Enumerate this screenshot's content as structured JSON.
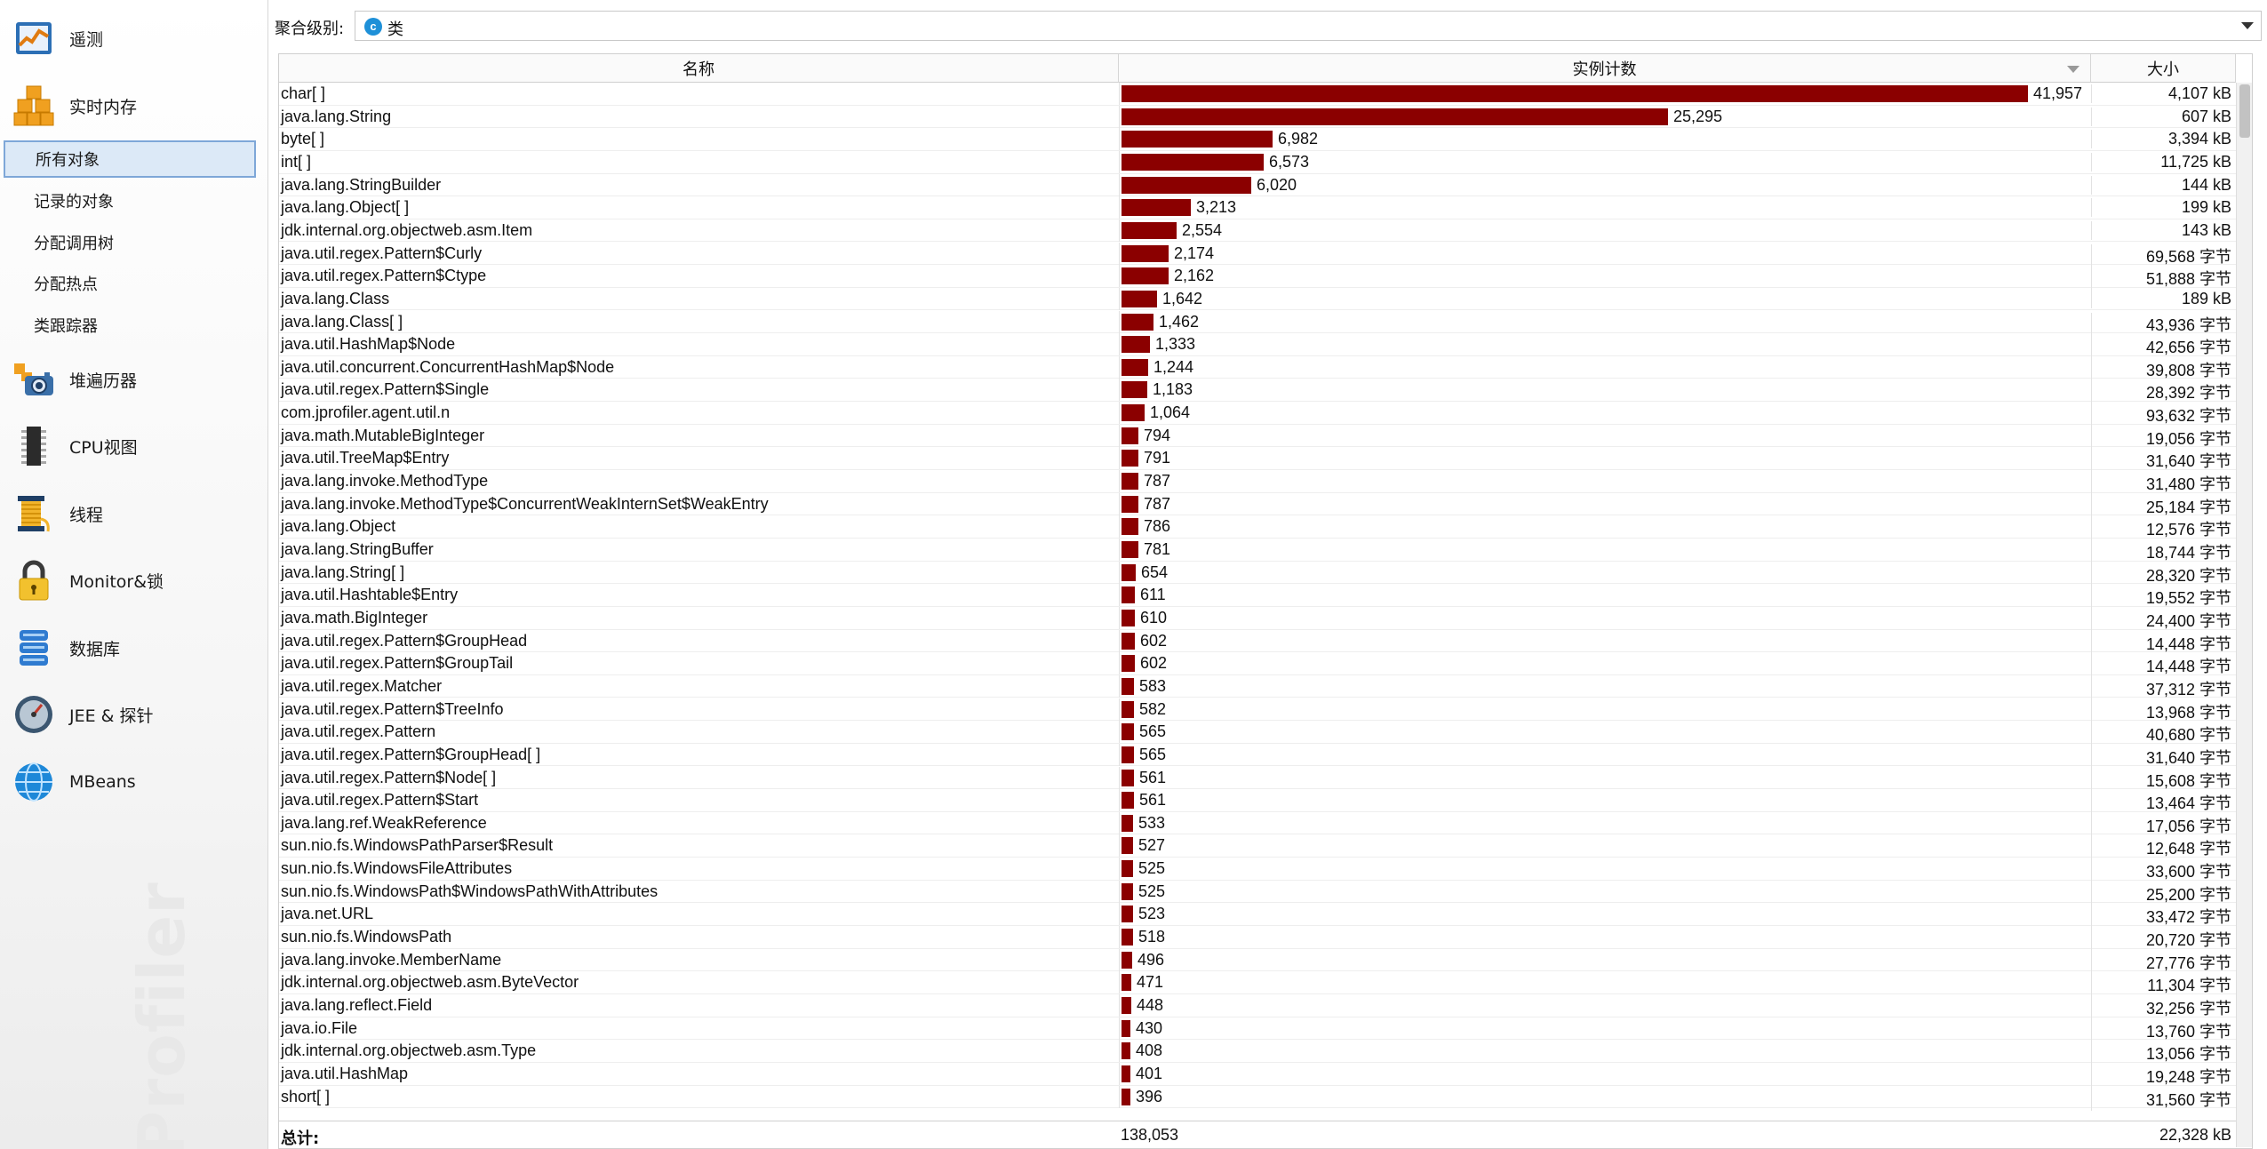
{
  "sidebar": {
    "items": [
      {
        "label": "遥测",
        "icon": "telemetry-icon"
      },
      {
        "label": "实时内存",
        "icon": "live-memory-icon"
      },
      {
        "label": "堆遍历器",
        "icon": "heap-walker-icon"
      },
      {
        "label": "CPU视图",
        "icon": "cpu-chip-icon"
      },
      {
        "label": "线程",
        "icon": "thread-spool-icon"
      },
      {
        "label": "Monitor&锁",
        "icon": "lock-icon"
      },
      {
        "label": "数据库",
        "icon": "database-icon"
      },
      {
        "label": "JEE & 探针",
        "icon": "gauge-icon"
      },
      {
        "label": "MBeans",
        "icon": "globe-icon"
      }
    ],
    "sub_items": [
      {
        "label": "所有对象",
        "selected": true
      },
      {
        "label": "记录的对象",
        "selected": false
      },
      {
        "label": "分配调用树",
        "selected": false
      },
      {
        "label": "分配热点",
        "selected": false
      },
      {
        "label": "类跟踪器",
        "selected": false
      }
    ],
    "watermark": "Profiler"
  },
  "aggregation": {
    "label": "聚合级别:",
    "badge": "c",
    "value": "类"
  },
  "table": {
    "columns": {
      "name": "名称",
      "count": "实例计数",
      "size": "大小"
    },
    "max_count": 41957,
    "bar_color": "#8b0000",
    "rows": [
      {
        "name": "char[ ]",
        "count": 41957,
        "count_label": "41,957",
        "size": "4,107 kB"
      },
      {
        "name": "java.lang.String",
        "count": 25295,
        "count_label": "25,295",
        "size": "607 kB"
      },
      {
        "name": "byte[ ]",
        "count": 6982,
        "count_label": "6,982",
        "size": "3,394 kB"
      },
      {
        "name": "int[ ]",
        "count": 6573,
        "count_label": "6,573",
        "size": "11,725 kB"
      },
      {
        "name": "java.lang.StringBuilder",
        "count": 6020,
        "count_label": "6,020",
        "size": "144 kB"
      },
      {
        "name": "java.lang.Object[ ]",
        "count": 3213,
        "count_label": "3,213",
        "size": "199 kB"
      },
      {
        "name": "jdk.internal.org.objectweb.asm.Item",
        "count": 2554,
        "count_label": "2,554",
        "size": "143 kB"
      },
      {
        "name": "java.util.regex.Pattern$Curly",
        "count": 2174,
        "count_label": "2,174",
        "size": "69,568 字节"
      },
      {
        "name": "java.util.regex.Pattern$Ctype",
        "count": 2162,
        "count_label": "2,162",
        "size": "51,888 字节"
      },
      {
        "name": "java.lang.Class",
        "count": 1642,
        "count_label": "1,642",
        "size": "189 kB"
      },
      {
        "name": "java.lang.Class[ ]",
        "count": 1462,
        "count_label": "1,462",
        "size": "43,936 字节"
      },
      {
        "name": "java.util.HashMap$Node",
        "count": 1333,
        "count_label": "1,333",
        "size": "42,656 字节"
      },
      {
        "name": "java.util.concurrent.ConcurrentHashMap$Node",
        "count": 1244,
        "count_label": "1,244",
        "size": "39,808 字节"
      },
      {
        "name": "java.util.regex.Pattern$Single",
        "count": 1183,
        "count_label": "1,183",
        "size": "28,392 字节"
      },
      {
        "name": "com.jprofiler.agent.util.n",
        "count": 1064,
        "count_label": "1,064",
        "size": "93,632 字节"
      },
      {
        "name": "java.math.MutableBigInteger",
        "count": 794,
        "count_label": "794",
        "size": "19,056 字节"
      },
      {
        "name": "java.util.TreeMap$Entry",
        "count": 791,
        "count_label": "791",
        "size": "31,640 字节"
      },
      {
        "name": "java.lang.invoke.MethodType",
        "count": 787,
        "count_label": "787",
        "size": "31,480 字节"
      },
      {
        "name": "java.lang.invoke.MethodType$ConcurrentWeakInternSet$WeakEntry",
        "count": 787,
        "count_label": "787",
        "size": "25,184 字节"
      },
      {
        "name": "java.lang.Object",
        "count": 786,
        "count_label": "786",
        "size": "12,576 字节"
      },
      {
        "name": "java.lang.StringBuffer",
        "count": 781,
        "count_label": "781",
        "size": "18,744 字节"
      },
      {
        "name": "java.lang.String[ ]",
        "count": 654,
        "count_label": "654",
        "size": "28,320 字节"
      },
      {
        "name": "java.util.Hashtable$Entry",
        "count": 611,
        "count_label": "611",
        "size": "19,552 字节"
      },
      {
        "name": "java.math.BigInteger",
        "count": 610,
        "count_label": "610",
        "size": "24,400 字节"
      },
      {
        "name": "java.util.regex.Pattern$GroupHead",
        "count": 602,
        "count_label": "602",
        "size": "14,448 字节"
      },
      {
        "name": "java.util.regex.Pattern$GroupTail",
        "count": 602,
        "count_label": "602",
        "size": "14,448 字节"
      },
      {
        "name": "java.util.regex.Matcher",
        "count": 583,
        "count_label": "583",
        "size": "37,312 字节"
      },
      {
        "name": "java.util.regex.Pattern$TreeInfo",
        "count": 582,
        "count_label": "582",
        "size": "13,968 字节"
      },
      {
        "name": "java.util.regex.Pattern",
        "count": 565,
        "count_label": "565",
        "size": "40,680 字节"
      },
      {
        "name": "java.util.regex.Pattern$GroupHead[ ]",
        "count": 565,
        "count_label": "565",
        "size": "31,640 字节"
      },
      {
        "name": "java.util.regex.Pattern$Node[ ]",
        "count": 561,
        "count_label": "561",
        "size": "15,608 字节"
      },
      {
        "name": "java.util.regex.Pattern$Start",
        "count": 561,
        "count_label": "561",
        "size": "13,464 字节"
      },
      {
        "name": "java.lang.ref.WeakReference",
        "count": 533,
        "count_label": "533",
        "size": "17,056 字节"
      },
      {
        "name": "sun.nio.fs.WindowsPathParser$Result",
        "count": 527,
        "count_label": "527",
        "size": "12,648 字节"
      },
      {
        "name": "sun.nio.fs.WindowsFileAttributes",
        "count": 525,
        "count_label": "525",
        "size": "33,600 字节"
      },
      {
        "name": "sun.nio.fs.WindowsPath$WindowsPathWithAttributes",
        "count": 525,
        "count_label": "525",
        "size": "25,200 字节"
      },
      {
        "name": "java.net.URL",
        "count": 523,
        "count_label": "523",
        "size": "33,472 字节"
      },
      {
        "name": "sun.nio.fs.WindowsPath",
        "count": 518,
        "count_label": "518",
        "size": "20,720 字节"
      },
      {
        "name": "java.lang.invoke.MemberName",
        "count": 496,
        "count_label": "496",
        "size": "27,776 字节"
      },
      {
        "name": "jdk.internal.org.objectweb.asm.ByteVector",
        "count": 471,
        "count_label": "471",
        "size": "11,304 字节"
      },
      {
        "name": "java.lang.reflect.Field",
        "count": 448,
        "count_label": "448",
        "size": "32,256 字节"
      },
      {
        "name": "java.io.File",
        "count": 430,
        "count_label": "430",
        "size": "13,760 字节"
      },
      {
        "name": "jdk.internal.org.objectweb.asm.Type",
        "count": 408,
        "count_label": "408",
        "size": "13,056 字节"
      },
      {
        "name": "java.util.HashMap",
        "count": 401,
        "count_label": "401",
        "size": "19,248 字节"
      },
      {
        "name": "short[ ]",
        "count": 396,
        "count_label": "396",
        "size": "31,560 字节"
      }
    ],
    "total": {
      "label": "总计:",
      "count": "138,053",
      "size": "22,328 kB"
    }
  }
}
